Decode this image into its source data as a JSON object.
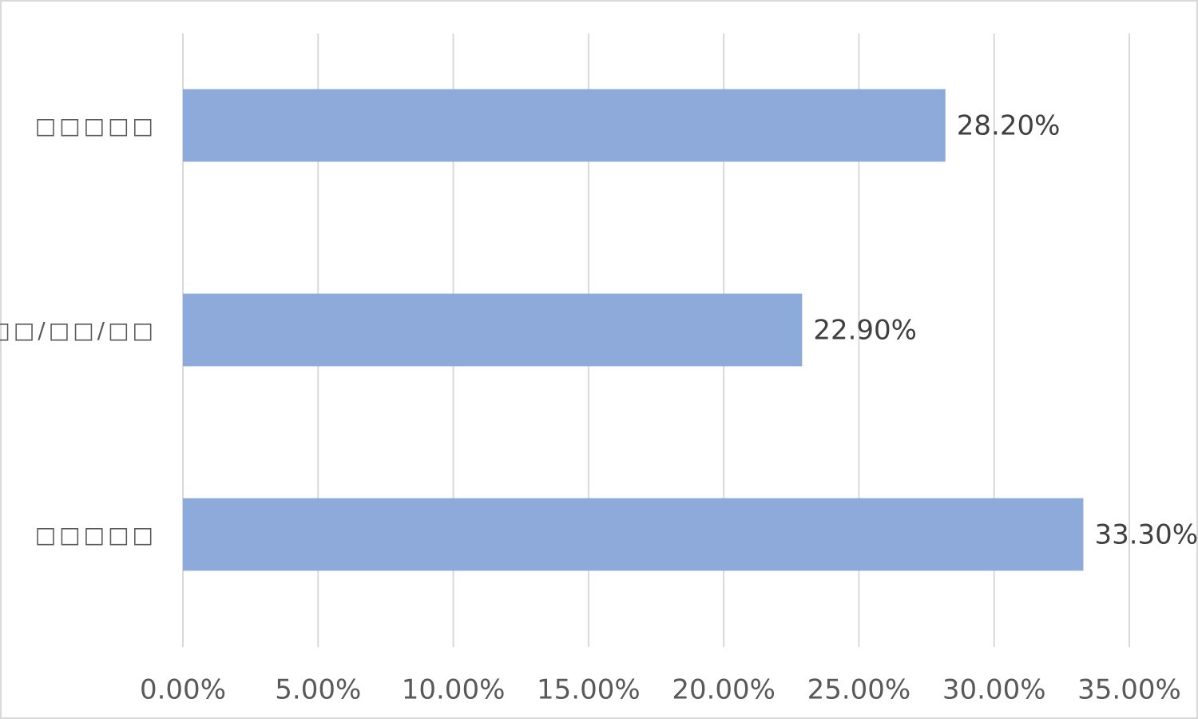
{
  "chart_data": {
    "type": "hbar",
    "categories": [
      "□□□□□",
      "□□/□□/□□",
      "□□□□□"
    ],
    "values": [
      28.2,
      22.9,
      33.3
    ],
    "value_labels": [
      "28.20%",
      "22.90%",
      "33.30%"
    ],
    "color": "#8eaadb",
    "xlim": [
      0,
      35
    ],
    "xticks": [
      {
        "value": 0,
        "label": "0.00%"
      },
      {
        "value": 5,
        "label": "5.00%"
      },
      {
        "value": 10,
        "label": "10.00%"
      },
      {
        "value": 15,
        "label": "15.00%"
      },
      {
        "value": 20,
        "label": "20.00%"
      },
      {
        "value": 25,
        "label": "25.00%"
      },
      {
        "value": 30,
        "label": "30.00%"
      },
      {
        "value": 35,
        "label": "35.00%"
      }
    ],
    "grid": true
  }
}
